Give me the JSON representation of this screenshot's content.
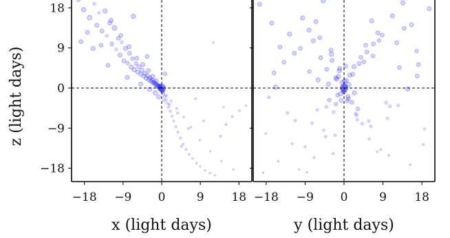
{
  "chart_data": [
    {
      "type": "scatter",
      "xlabel": "x (light days)",
      "ylabel": "z (light days)",
      "xlim": [
        -21,
        21
      ],
      "ylim": [
        -21,
        21
      ],
      "xticks": [
        -18,
        -9,
        0,
        9,
        18
      ],
      "yticks": [
        -18,
        -9,
        0,
        9,
        18
      ],
      "xtick_labels": [
        "−18",
        "−9",
        "0",
        "9",
        "18"
      ],
      "ytick_labels": [
        "−18",
        "−9",
        "0",
        "9",
        "18"
      ],
      "zero_lines": true,
      "marker_color": "#1f1fff",
      "marker_opacity": 0.18,
      "points_x": [
        -19.4,
        -18.2,
        -17.6,
        -16.8,
        -15.7,
        -15.1,
        -14.6,
        -13.9,
        -13.2,
        -12.8,
        -12.1,
        -11.6,
        -11.0,
        -10.6,
        -10.1,
        -9.7,
        -9.3,
        -8.8,
        -8.4,
        -7.9,
        -7.5,
        -7.1,
        -6.8,
        -6.4,
        -6.0,
        -5.6,
        -5.3,
        -4.9,
        -4.6,
        -4.2,
        -3.9,
        -3.6,
        -3.3,
        -3.0,
        -2.7,
        -2.5,
        -2.2,
        -2.0,
        -1.8,
        -1.6,
        -1.4,
        -1.2,
        -1.0,
        -0.8,
        -0.6,
        -0.4,
        -0.2,
        0.0,
        0.2,
        0.4,
        0.7,
        1.0,
        1.3,
        1.6,
        2.0,
        2.4,
        2.8,
        3.3,
        3.8,
        4.4,
        5.0,
        5.7,
        6.4,
        7.2,
        8.1,
        9.0,
        10.1,
        11.2,
        12.4,
        13.7,
        15.0,
        16.4,
        18.1,
        19.6,
        -17.3,
        -14.1,
        -11.8,
        -9.5,
        -7.6,
        -5.8,
        -4.4,
        -3.1,
        -2.1,
        -1.3,
        -0.5,
        0.3,
        1.1,
        2.2,
        3.5,
        5.1,
        6.8,
        8.9,
        11.3,
        13.9,
        16.7,
        -16.0,
        -12.5,
        -8.0,
        -4.9,
        -2.8,
        -1.5,
        -0.7,
        0.5,
        1.8,
        3.7,
        6.2,
        9.8,
        14.4,
        -18.8,
        -6.6,
        -3.4,
        0.8,
        4.6,
        7.9,
        12.0
      ],
      "points_y": [
        19.8,
        17.6,
        20.4,
        15.8,
        18.9,
        14.1,
        16.9,
        12.8,
        17.3,
        11.7,
        14.6,
        9.9,
        13.5,
        8.7,
        11.2,
        7.4,
        10.3,
        6.1,
        8.9,
        5.6,
        7.8,
        4.7,
        6.6,
        4.1,
        5.5,
        3.6,
        4.8,
        3.1,
        4.0,
        2.7,
        3.3,
        2.2,
        2.8,
        1.9,
        2.3,
        1.5,
        1.8,
        1.2,
        1.4,
        0.9,
        1.0,
        0.6,
        0.7,
        0.3,
        0.4,
        0.1,
        -0.1,
        -0.4,
        -0.8,
        -1.3,
        -1.9,
        -2.6,
        -3.4,
        -4.3,
        -5.2,
        -6.3,
        -7.4,
        -8.7,
        -9.9,
        -11.2,
        -12.6,
        -13.8,
        -14.9,
        -15.8,
        -16.9,
        -17.6,
        -18.5,
        -19.1,
        -19.6,
        -10.8,
        -8.2,
        -6.4,
        -5.1,
        -3.9,
        12.5,
        9.6,
        15.2,
        11.8,
        9.3,
        6.7,
        5.3,
        3.9,
        2.6,
        1.6,
        0.5,
        -0.6,
        -1.7,
        -2.9,
        -4.6,
        -6.5,
        -8.8,
        -11.7,
        -14.2,
        -16.4,
        -18.3,
        8.9,
        5.1,
        2.4,
        0.9,
        -0.3,
        -1.1,
        -2.0,
        -2.8,
        -3.7,
        -5.6,
        -9.1,
        -7.4,
        -4.3,
        10.4,
        16.1,
        7.1,
        3.2,
        -13.1,
        -2.4,
        10.2
      ],
      "points_size": [
        2.6,
        3.1,
        2.2,
        3.4,
        2.5,
        3.0,
        2.3,
        2.8,
        3.2,
        2.4,
        2.9,
        2.7,
        3.3,
        2.3,
        2.8,
        3.0,
        2.5,
        2.9,
        3.1,
        2.6,
        2.8,
        3.0,
        2.7,
        3.2,
        2.6,
        2.9,
        3.0,
        2.8,
        3.1,
        2.9,
        2.7,
        3.0,
        2.8,
        3.2,
        2.9,
        3.0,
        2.8,
        3.1,
        2.9,
        3.2,
        3.0,
        3.1,
        2.9,
        3.2,
        3.1,
        3.3,
        3.0,
        3.2,
        2.7,
        2.4,
        2.2,
        2.1,
        2.0,
        1.9,
        1.9,
        1.8,
        1.8,
        1.8,
        1.7,
        1.7,
        1.6,
        1.6,
        1.5,
        1.5,
        1.5,
        1.4,
        1.4,
        1.4,
        1.3,
        1.9,
        1.7,
        1.6,
        1.5,
        1.4,
        3.0,
        2.8,
        3.1,
        2.7,
        2.9,
        2.8,
        3.0,
        2.9,
        3.1,
        3.2,
        3.0,
        2.2,
        2.0,
        1.8,
        1.7,
        1.6,
        1.5,
        1.4,
        1.4,
        1.3,
        1.3,
        3.1,
        2.8,
        2.9,
        3.0,
        3.1,
        3.2,
        3.0,
        2.1,
        1.9,
        1.8,
        1.6,
        1.5,
        1.4,
        2.9,
        3.2,
        2.8,
        2.6,
        1.7,
        1.6,
        1.5
      ]
    },
    {
      "type": "scatter",
      "xlabel": "y (light days)",
      "ylabel": "",
      "xlim": [
        -21,
        21
      ],
      "ylim": [
        -21,
        21
      ],
      "xticks": [
        -18,
        -9,
        0,
        9,
        18
      ],
      "yticks": [
        -18,
        -9,
        0,
        9,
        18
      ],
      "xtick_labels": [
        "−18",
        "−9",
        "0",
        "9",
        "18"
      ],
      "ytick_labels": [],
      "zero_lines": true,
      "marker_color": "#1f1fff",
      "marker_opacity": 0.18,
      "points_x": [
        -19.5,
        -18.1,
        -16.7,
        -15.2,
        -13.9,
        -12.6,
        -11.3,
        -10.1,
        -9.0,
        -8.0,
        -7.1,
        -6.2,
        -5.4,
        -4.7,
        -4.0,
        -3.4,
        -2.9,
        -2.4,
        -1.9,
        -1.5,
        -1.1,
        -0.7,
        -0.4,
        -0.1,
        0.2,
        0.5,
        0.9,
        1.3,
        1.8,
        2.3,
        2.9,
        3.5,
        4.2,
        5.0,
        5.8,
        6.7,
        7.7,
        8.8,
        10.0,
        11.2,
        12.5,
        13.9,
        15.3,
        16.8,
        18.3,
        19.7,
        -17.4,
        -14.8,
        -12.0,
        -9.6,
        -7.4,
        -5.6,
        -4.1,
        -2.8,
        -1.7,
        -0.8,
        0.1,
        1.0,
        2.0,
        3.2,
        4.6,
        6.2,
        8.1,
        10.3,
        12.8,
        15.6,
        18.6,
        -16.2,
        -13.1,
        -10.4,
        -8.1,
        -6.0,
        -4.3,
        -3.0,
        -1.9,
        -1.0,
        0.0,
        1.1,
        2.4,
        3.9,
        5.7,
        7.8,
        10.6,
        13.6,
        16.9,
        -18.7,
        -11.5,
        -6.9,
        -3.6,
        -1.3,
        0.7,
        2.7,
        5.3,
        8.5,
        12.2,
        17.2,
        -8.6,
        -4.8,
        -2.1,
        0.4,
        3.0,
        6.4,
        9.7,
        -15.8,
        14.7,
        -6.5,
        6.8,
        -2.5,
        2.6
      ],
      "points_y": [
        18.8,
        -10.2,
        14.6,
        -16.4,
        5.8,
        12.1,
        -7.3,
        8.9,
        -13.2,
        3.7,
        10.6,
        -4.9,
        6.8,
        -9.5,
        4.2,
        -2.7,
        7.6,
        -5.4,
        2.3,
        -1.6,
        3.9,
        -2.8,
        1.2,
        -0.6,
        0.4,
        1.7,
        -1.9,
        2.9,
        -3.2,
        4.8,
        -6.1,
        5.5,
        -8.0,
        9.6,
        -11.4,
        7.2,
        -14.3,
        11.9,
        -6.8,
        16.2,
        -3.9,
        13.4,
        -17.2,
        8.3,
        -12.7,
        17.8,
        -2.1,
        9.2,
        -12.5,
        15.7,
        -7.9,
        11.3,
        -4.2,
        6.2,
        2.0,
        -1.3,
        1.5,
        -2.4,
        3.1,
        -4.7,
        5.9,
        -8.6,
        10.7,
        -15.1,
        4.6,
        14.2,
        -9.2,
        3.4,
        -5.6,
        -18.3,
        13.0,
        1.8,
        -10.9,
        8.5,
        -3.6,
        4.4,
        -0.9,
        0.8,
        -1.1,
        6.9,
        -7.4,
        12.4,
        -4.1,
        19.1,
        2.7,
        -19.0,
        7.8,
        -15.6,
        0.9,
        2.6,
        -2.9,
        -5.7,
        8.1,
        -13.8,
        10.2,
        5.3,
        -18.9,
        19.6,
        -10.6,
        4.9,
        -7.1,
        15.1,
        -3.3,
        0.2,
        -0.2,
        14.9,
        9.9,
        -14.7
      ],
      "points_size": [
        3.0,
        1.6,
        2.9,
        1.5,
        2.7,
        3.1,
        2.0,
        2.8,
        1.7,
        2.6,
        3.0,
        2.2,
        2.9,
        2.0,
        2.8,
        2.6,
        3.1,
        2.4,
        3.0,
        2.8,
        3.2,
        2.9,
        3.3,
        3.1,
        3.2,
        3.1,
        2.9,
        3.0,
        2.8,
        3.1,
        2.5,
        2.9,
        2.3,
        2.8,
        1.9,
        2.7,
        1.7,
        2.9,
        2.1,
        3.0,
        2.2,
        2.8,
        1.6,
        2.6,
        1.7,
        3.1,
        2.4,
        2.9,
        1.8,
        3.0,
        2.1,
        2.8,
        2.4,
        2.9,
        3.1,
        3.0,
        3.2,
        2.8,
        2.9,
        2.6,
        2.7,
        2.2,
        2.6,
        1.7,
        2.7,
        2.9,
        1.8,
        2.8,
        2.3,
        1.5,
        3.0,
        3.1,
        2.0,
        2.9,
        2.6,
        3.0,
        3.2,
        3.3,
        3.0,
        2.8,
        2.2,
        2.9,
        2.4,
        3.1,
        2.8,
        1.5,
        2.9,
        1.7,
        3.0,
        3.1,
        2.7,
        2.4,
        2.8,
        1.8,
        2.9,
        2.8,
        1.5,
        3.1,
        2.0,
        2.9,
        2.3,
        3.0,
        2.5,
        3.2,
        3.1,
        2.9,
        2.8,
        1.9
      ]
    }
  ]
}
